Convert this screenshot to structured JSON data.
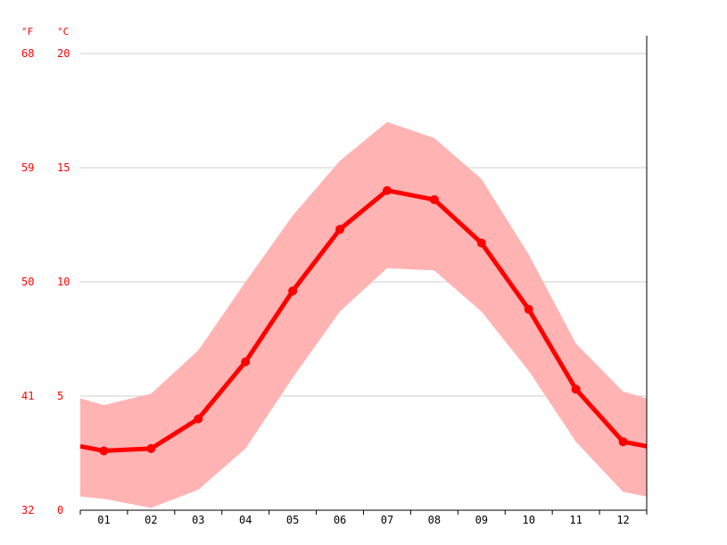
{
  "chart_data": {
    "type": "line",
    "title": "",
    "xlabel": "",
    "ylabel": "",
    "y_units": {
      "left_outer": "°F",
      "left_inner": "°C"
    },
    "categories": [
      "01",
      "02",
      "03",
      "04",
      "05",
      "06",
      "07",
      "08",
      "09",
      "10",
      "11",
      "12"
    ],
    "series": [
      {
        "values": [
          2.6,
          2.7,
          4.0,
          6.5,
          9.6,
          12.3,
          14.0,
          13.6,
          11.7,
          8.8,
          5.3,
          3.0
        ]
      }
    ],
    "band": {
      "min": [
        0.5,
        0.1,
        0.9,
        2.7,
        5.8,
        8.7,
        10.6,
        10.5,
        8.7,
        6.1,
        3.0,
        0.8
      ],
      "max": [
        4.6,
        5.1,
        7.0,
        10.0,
        12.9,
        15.3,
        17.0,
        16.3,
        14.5,
        11.2,
        7.3,
        5.2
      ]
    },
    "edge_values": {
      "line": [
        2.8,
        2.8
      ],
      "min": [
        0.6,
        0.6
      ],
      "max": [
        4.9,
        4.9
      ]
    },
    "y_ticks_celsius": [
      "0",
      "5",
      "10",
      "15",
      "20"
    ],
    "y_ticks_fahrenheit": [
      "32",
      "41",
      "50",
      "59",
      "68"
    ],
    "ylim": [
      0,
      20
    ],
    "grid": true,
    "colors": {
      "line": "#ff0000",
      "band": "#ffb3b3",
      "grid": "#cccccc",
      "text": "#ff0000",
      "axis": "#000000"
    }
  }
}
